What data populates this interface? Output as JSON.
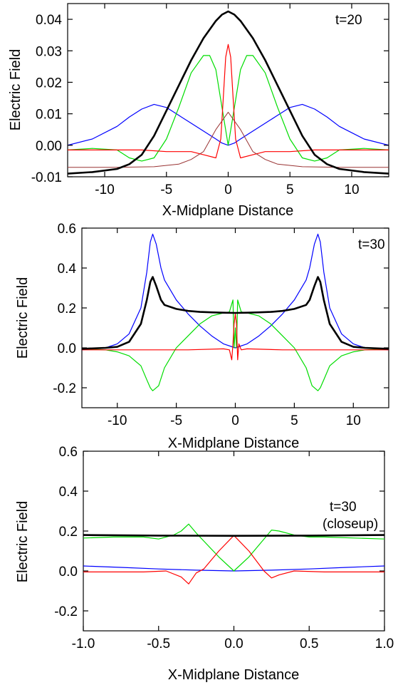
{
  "chart_data": [
    {
      "type": "line",
      "annotation": [
        "t=20"
      ],
      "xlabel": "X-Midplane Distance",
      "ylabel": "Electric Field",
      "xlim": [
        -13,
        13
      ],
      "ylim": [
        -0.01,
        0.045
      ],
      "xticks": [
        -10,
        -5,
        0,
        5,
        10
      ],
      "xtick_labels": [
        "-10",
        "-5",
        "0",
        "5",
        "10"
      ],
      "yticks": [
        -0.01,
        0.0,
        0.01,
        0.02,
        0.03,
        0.04
      ],
      "ytick_labels": [
        "-0.01",
        "0.00",
        "0.01",
        "0.02",
        "0.03",
        "0.04"
      ],
      "series": [
        {
          "color": "#0000ff",
          "width": 1.2,
          "x": [
            -13,
            -11,
            -9,
            -8,
            -7,
            -6,
            -5,
            -4,
            -3,
            -2,
            -1,
            -0.5,
            0,
            0.5,
            1,
            2,
            3,
            4,
            5,
            6,
            7,
            8,
            9,
            11,
            13
          ],
          "y": [
            0.0,
            0.002,
            0.006,
            0.009,
            0.0115,
            0.013,
            0.012,
            0.0095,
            0.007,
            0.0045,
            0.002,
            0.0007,
            0.0,
            0.0007,
            0.002,
            0.0045,
            0.007,
            0.0095,
            0.012,
            0.013,
            0.0115,
            0.009,
            0.006,
            0.002,
            0.0
          ]
        },
        {
          "color": "#00dd00",
          "width": 1.2,
          "x": [
            -13,
            -11,
            -9,
            -8,
            -7,
            -6,
            -5,
            -4,
            -3,
            -2,
            -1.5,
            -1,
            -0.5,
            0,
            0.5,
            1,
            1.5,
            2,
            3,
            4,
            5,
            6,
            7,
            8,
            9,
            11,
            13
          ],
          "y": [
            -0.0015,
            -0.001,
            -0.0015,
            -0.004,
            -0.005,
            -0.004,
            0.002,
            0.012,
            0.023,
            0.0285,
            0.0285,
            0.024,
            0.012,
            0.0,
            0.012,
            0.024,
            0.0285,
            0.0285,
            0.023,
            0.012,
            0.002,
            -0.004,
            -0.005,
            -0.004,
            -0.0015,
            -0.001,
            -0.0015
          ]
        },
        {
          "color": "#ff0000",
          "width": 1.2,
          "x": [
            -13,
            -11,
            -9,
            -7,
            -5,
            -3,
            -2,
            -1,
            -0.6,
            -0.4,
            -0.2,
            0,
            0.2,
            0.4,
            0.6,
            1,
            2,
            3,
            5,
            7,
            9,
            11,
            13
          ],
          "y": [
            -0.0015,
            -0.0015,
            -0.0015,
            -0.0015,
            -0.002,
            -0.002,
            -0.003,
            -0.004,
            0.002,
            0.015,
            0.028,
            0.032,
            0.028,
            0.015,
            0.002,
            -0.004,
            -0.003,
            -0.002,
            -0.002,
            -0.0015,
            -0.0015,
            -0.0015,
            -0.0015
          ]
        },
        {
          "color": "#993333",
          "width": 1.0,
          "x": [
            -13,
            -9,
            -6,
            -4,
            -3,
            -2,
            -1,
            0,
            1,
            2,
            3,
            4,
            6,
            9,
            13
          ],
          "y": [
            -0.007,
            -0.007,
            -0.0068,
            -0.006,
            -0.0045,
            -0.002,
            0.005,
            0.0105,
            0.005,
            -0.002,
            -0.0045,
            -0.006,
            -0.0068,
            -0.007,
            -0.007
          ]
        },
        {
          "color": "#000000",
          "width": 2.6,
          "x": [
            -13,
            -11,
            -9,
            -8,
            -7,
            -6,
            -5,
            -4,
            -3,
            -2,
            -1,
            -0.5,
            0,
            0.5,
            1,
            2,
            3,
            4,
            5,
            6,
            7,
            8,
            9,
            11,
            13
          ],
          "y": [
            -0.009,
            -0.0085,
            -0.0075,
            -0.006,
            -0.003,
            0.003,
            0.011,
            0.019,
            0.027,
            0.034,
            0.0395,
            0.0415,
            0.0425,
            0.0415,
            0.0395,
            0.034,
            0.027,
            0.019,
            0.011,
            0.003,
            -0.003,
            -0.006,
            -0.0075,
            -0.0085,
            -0.009
          ]
        }
      ]
    },
    {
      "type": "line",
      "annotation": [
        "t=30"
      ],
      "xlabel": "X-Midplane Distance",
      "ylabel": "Electric Field",
      "xlim": [
        -13,
        13
      ],
      "ylim": [
        -0.3,
        0.6
      ],
      "xticks": [
        -10,
        -5,
        0,
        5,
        10
      ],
      "xtick_labels": [
        "-10",
        "-5",
        "0",
        "5",
        "10"
      ],
      "yticks": [
        -0.2,
        0.0,
        0.2,
        0.4,
        0.6
      ],
      "ytick_labels": [
        "-0.2",
        "0.0",
        "0.2",
        "0.4",
        "0.6"
      ],
      "series": [
        {
          "color": "#0000ff",
          "width": 1.2,
          "x": [
            -13,
            -11,
            -10,
            -9,
            -8,
            -7.5,
            -7.2,
            -7,
            -6.7,
            -6.3,
            -6,
            -5,
            -4,
            -3,
            -2,
            -1,
            0,
            1,
            2,
            3,
            4,
            5,
            6,
            6.3,
            6.7,
            7,
            7.2,
            7.5,
            8,
            9,
            10,
            11,
            13
          ],
          "y": [
            -0.01,
            0.0,
            0.02,
            0.07,
            0.2,
            0.38,
            0.53,
            0.57,
            0.52,
            0.4,
            0.34,
            0.24,
            0.17,
            0.11,
            0.06,
            0.02,
            0.0,
            0.02,
            0.06,
            0.11,
            0.17,
            0.24,
            0.34,
            0.4,
            0.52,
            0.57,
            0.53,
            0.38,
            0.2,
            0.07,
            0.02,
            0.0,
            -0.01
          ]
        },
        {
          "color": "#00dd00",
          "width": 1.2,
          "x": [
            -13,
            -11,
            -10,
            -9,
            -8,
            -7.5,
            -7.2,
            -7,
            -6.5,
            -6,
            -5,
            -4,
            -3,
            -2,
            -1,
            -0.5,
            -0.2,
            -0.1,
            0,
            0.1,
            0.2,
            0.5,
            1,
            2,
            3,
            4,
            5,
            6,
            6.5,
            7,
            7.2,
            7.5,
            8,
            9,
            10,
            11,
            13
          ],
          "y": [
            -0.005,
            -0.01,
            -0.02,
            -0.04,
            -0.09,
            -0.16,
            -0.2,
            -0.215,
            -0.19,
            -0.1,
            0.0,
            0.06,
            0.12,
            0.16,
            0.175,
            0.18,
            0.24,
            0.0,
            0.1,
            0.0,
            0.24,
            0.18,
            0.175,
            0.16,
            0.12,
            0.06,
            0.0,
            -0.1,
            -0.19,
            -0.215,
            -0.2,
            -0.16,
            -0.09,
            -0.04,
            -0.02,
            -0.01,
            -0.005
          ]
        },
        {
          "color": "#ff0000",
          "width": 1.2,
          "x": [
            -13,
            -8,
            -4,
            -1,
            -0.5,
            -0.3,
            -0.2,
            -0.1,
            0,
            0.1,
            0.2,
            0.3,
            0.5,
            1,
            4,
            8,
            13
          ],
          "y": [
            -0.01,
            -0.01,
            -0.01,
            -0.005,
            -0.01,
            -0.06,
            0.02,
            0.12,
            0.17,
            0.12,
            -0.06,
            0.02,
            -0.01,
            -0.005,
            -0.01,
            -0.01,
            -0.01
          ]
        },
        {
          "color": "#000000",
          "width": 2.6,
          "x": [
            -13,
            -11,
            -10,
            -9,
            -8,
            -7.5,
            -7.2,
            -7,
            -6.7,
            -6.3,
            -6,
            -5,
            -4,
            -3,
            -2,
            -1,
            0,
            1,
            2,
            3,
            4,
            5,
            6,
            6.3,
            6.7,
            7,
            7.2,
            7.5,
            8,
            9,
            10,
            11,
            13
          ],
          "y": [
            -0.005,
            0.0,
            0.005,
            0.03,
            0.12,
            0.24,
            0.33,
            0.355,
            0.31,
            0.24,
            0.215,
            0.195,
            0.185,
            0.18,
            0.178,
            0.176,
            0.175,
            0.176,
            0.178,
            0.18,
            0.185,
            0.195,
            0.215,
            0.24,
            0.31,
            0.355,
            0.33,
            0.24,
            0.12,
            0.03,
            0.005,
            0.0,
            -0.005
          ]
        }
      ]
    },
    {
      "type": "line",
      "annotation": [
        "t=30",
        "(closeup)"
      ],
      "xlabel": "X-Midplane Distance",
      "ylabel": "Electric Field",
      "xlim": [
        -1.0,
        1.0
      ],
      "ylim": [
        -0.3,
        0.6
      ],
      "xticks": [
        -1.0,
        -0.5,
        0.0,
        0.5,
        1.0
      ],
      "xtick_labels": [
        "-1.0",
        "-0.5",
        "0.0",
        "0.5",
        "1.0"
      ],
      "yticks": [
        -0.2,
        0.0,
        0.2,
        0.4,
        0.6
      ],
      "ytick_labels": [
        "-0.2",
        "0.0",
        "0.2",
        "0.4",
        "0.6"
      ],
      "series": [
        {
          "color": "#0000ff",
          "width": 1.2,
          "x": [
            -1.0,
            -0.75,
            -0.5,
            -0.25,
            0,
            0.25,
            0.5,
            0.75,
            1.0
          ],
          "y": [
            0.025,
            0.018,
            0.01,
            0.004,
            0.0,
            0.004,
            0.01,
            0.018,
            0.025
          ]
        },
        {
          "color": "#00dd00",
          "width": 1.2,
          "x": [
            -1.0,
            -0.8,
            -0.6,
            -0.5,
            -0.4,
            -0.35,
            -0.3,
            -0.25,
            -0.2,
            -0.1,
            0,
            0.1,
            0.2,
            0.25,
            0.3,
            0.4,
            0.5,
            0.6,
            0.8,
            1.0
          ],
          "y": [
            0.165,
            0.17,
            0.17,
            0.16,
            0.18,
            0.2,
            0.235,
            0.19,
            0.15,
            0.07,
            0.0,
            0.07,
            0.16,
            0.205,
            0.2,
            0.18,
            0.17,
            0.17,
            0.165,
            0.16
          ]
        },
        {
          "color": "#ff0000",
          "width": 1.2,
          "x": [
            -1.0,
            -0.6,
            -0.45,
            -0.35,
            -0.3,
            -0.25,
            -0.2,
            -0.1,
            0,
            0.1,
            0.2,
            0.25,
            0.3,
            0.4,
            0.6,
            1.0
          ],
          "y": [
            -0.005,
            -0.005,
            0.0,
            -0.03,
            -0.065,
            -0.01,
            0.01,
            0.1,
            0.178,
            0.1,
            0.0,
            -0.035,
            -0.02,
            0.0,
            -0.005,
            -0.005
          ]
        },
        {
          "color": "#000000",
          "width": 2.6,
          "x": [
            -1.0,
            -0.5,
            0,
            0.5,
            1.0
          ],
          "y": [
            0.18,
            0.177,
            0.176,
            0.177,
            0.18
          ]
        }
      ]
    }
  ]
}
